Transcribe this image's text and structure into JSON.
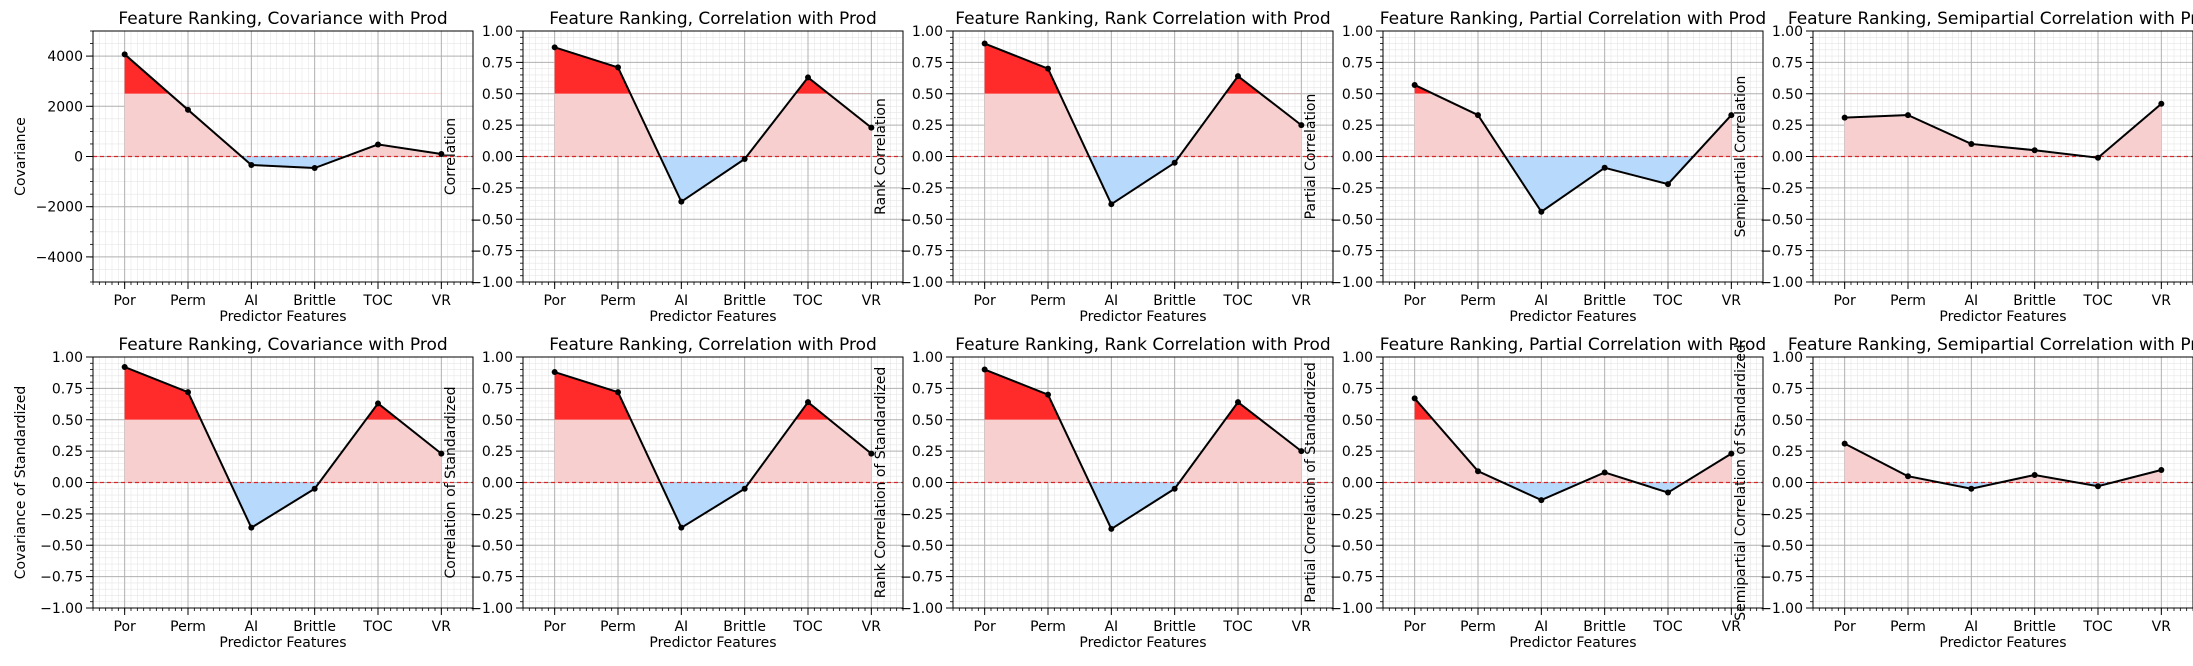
{
  "figure": {
    "xlabel": "Predictor Features",
    "categories": [
      "Por",
      "Perm",
      "AI",
      "Brittle",
      "TOC",
      "VR"
    ],
    "colors": {
      "line": "#000000",
      "high_fill": "#ff2a2a",
      "pos_fill": "#f8cfcf",
      "neg_fill": "#b7d9fb",
      "zero_line": "#d62728",
      "grid_major": "#b0b0b0",
      "grid_minor": "#e6e6e6",
      "neg_stroke": "#6f8fcf"
    }
  },
  "chart_data": [
    {
      "type": "line",
      "title": "Feature Ranking, Covariance with Prod",
      "xlabel": "Predictor Features",
      "ylabel": "Covariance",
      "categories": [
        "Por",
        "Perm",
        "AI",
        "Brittle",
        "TOC",
        "VR"
      ],
      "values": [
        4070,
        1860,
        -340,
        -460,
        480,
        100
      ],
      "ylim": [
        -5000,
        5000
      ],
      "yticks": [
        -4000,
        -2000,
        0,
        2000,
        4000
      ],
      "ytick_labels": [
        "−4000",
        "−2000",
        "0",
        "2000",
        "4000"
      ],
      "minor_step": 500,
      "high_threshold": 2500,
      "grid": true
    },
    {
      "type": "line",
      "title": "Feature Ranking, Correlation with Prod",
      "xlabel": "Predictor Features",
      "ylabel": "Correlation",
      "categories": [
        "Por",
        "Perm",
        "AI",
        "Brittle",
        "TOC",
        "VR"
      ],
      "values": [
        0.87,
        0.71,
        -0.36,
        -0.02,
        0.63,
        0.23
      ],
      "ylim": [
        -1.0,
        1.0
      ],
      "yticks": [
        -1.0,
        -0.75,
        -0.5,
        -0.25,
        0.0,
        0.25,
        0.5,
        0.75,
        1.0
      ],
      "ytick_labels": [
        "−1.00",
        "−0.75",
        "−0.50",
        "−0.25",
        "0.00",
        "0.25",
        "0.50",
        "0.75",
        "1.00"
      ],
      "minor_step": 0.05,
      "high_threshold": 0.5,
      "grid": true
    },
    {
      "type": "line",
      "title": "Feature Ranking, Rank Correlation with Prod",
      "xlabel": "Predictor Features",
      "ylabel": "Rank Correlation",
      "categories": [
        "Por",
        "Perm",
        "AI",
        "Brittle",
        "TOC",
        "VR"
      ],
      "values": [
        0.9,
        0.7,
        -0.38,
        -0.05,
        0.64,
        0.25
      ],
      "ylim": [
        -1.0,
        1.0
      ],
      "yticks": [
        -1.0,
        -0.75,
        -0.5,
        -0.25,
        0.0,
        0.25,
        0.5,
        0.75,
        1.0
      ],
      "ytick_labels": [
        "−1.00",
        "−0.75",
        "−0.50",
        "−0.25",
        "0.00",
        "0.25",
        "0.50",
        "0.75",
        "1.00"
      ],
      "minor_step": 0.05,
      "high_threshold": 0.5,
      "grid": true
    },
    {
      "type": "line",
      "title": "Feature Ranking, Partial Correlation with Prod",
      "xlabel": "Predictor Features",
      "ylabel": "Partial Correlation",
      "categories": [
        "Por",
        "Perm",
        "AI",
        "Brittle",
        "TOC",
        "VR"
      ],
      "values": [
        0.57,
        0.33,
        -0.44,
        -0.09,
        -0.22,
        0.33
      ],
      "ylim": [
        -1.0,
        1.0
      ],
      "yticks": [
        -1.0,
        -0.75,
        -0.5,
        -0.25,
        0.0,
        0.25,
        0.5,
        0.75,
        1.0
      ],
      "ytick_labels": [
        "−1.00",
        "−0.75",
        "−0.50",
        "−0.25",
        "0.00",
        "0.25",
        "0.50",
        "0.75",
        "1.00"
      ],
      "minor_step": 0.05,
      "high_threshold": 0.5,
      "grid": true
    },
    {
      "type": "line",
      "title": "Feature Ranking, Semipartial Correlation with Prod",
      "xlabel": "Predictor Features",
      "ylabel": "Semipartial Correlation",
      "categories": [
        "Por",
        "Perm",
        "AI",
        "Brittle",
        "TOC",
        "VR"
      ],
      "values": [
        0.31,
        0.33,
        0.1,
        0.05,
        -0.01,
        0.42
      ],
      "ylim": [
        -1.0,
        1.0
      ],
      "yticks": [
        -1.0,
        -0.75,
        -0.5,
        -0.25,
        0.0,
        0.25,
        0.5,
        0.75,
        1.0
      ],
      "ytick_labels": [
        "−1.00",
        "−0.75",
        "−0.50",
        "−0.25",
        "0.00",
        "0.25",
        "0.50",
        "0.75",
        "1.00"
      ],
      "minor_step": 0.05,
      "high_threshold": 0.5,
      "grid": true
    },
    {
      "type": "line",
      "title": "Feature Ranking, Covariance with Prod",
      "xlabel": "Predictor Features",
      "ylabel": "Covariance of Standardized",
      "categories": [
        "Por",
        "Perm",
        "AI",
        "Brittle",
        "TOC",
        "VR"
      ],
      "values": [
        0.92,
        0.72,
        -0.36,
        -0.05,
        0.63,
        0.23
      ],
      "ylim": [
        -1.0,
        1.0
      ],
      "yticks": [
        -1.0,
        -0.75,
        -0.5,
        -0.25,
        0.0,
        0.25,
        0.5,
        0.75,
        1.0
      ],
      "ytick_labels": [
        "−1.00",
        "−0.75",
        "−0.50",
        "−0.25",
        "0.00",
        "0.25",
        "0.50",
        "0.75",
        "1.00"
      ],
      "minor_step": 0.05,
      "high_threshold": 0.5,
      "grid": true
    },
    {
      "type": "line",
      "title": "Feature Ranking, Correlation with Prod",
      "xlabel": "Predictor Features",
      "ylabel": "Correlation of Standardized",
      "categories": [
        "Por",
        "Perm",
        "AI",
        "Brittle",
        "TOC",
        "VR"
      ],
      "values": [
        0.88,
        0.72,
        -0.36,
        -0.05,
        0.64,
        0.23
      ],
      "ylim": [
        -1.0,
        1.0
      ],
      "yticks": [
        -1.0,
        -0.75,
        -0.5,
        -0.25,
        0.0,
        0.25,
        0.5,
        0.75,
        1.0
      ],
      "ytick_labels": [
        "−1.00",
        "−0.75",
        "−0.50",
        "−0.25",
        "0.00",
        "0.25",
        "0.50",
        "0.75",
        "1.00"
      ],
      "minor_step": 0.05,
      "high_threshold": 0.5,
      "grid": true
    },
    {
      "type": "line",
      "title": "Feature Ranking, Rank Correlation with Prod",
      "xlabel": "Predictor Features",
      "ylabel": "Rank Correlation of Standardized",
      "categories": [
        "Por",
        "Perm",
        "AI",
        "Brittle",
        "TOC",
        "VR"
      ],
      "values": [
        0.9,
        0.7,
        -0.37,
        -0.05,
        0.64,
        0.25
      ],
      "ylim": [
        -1.0,
        1.0
      ],
      "yticks": [
        -1.0,
        -0.75,
        -0.5,
        -0.25,
        0.0,
        0.25,
        0.5,
        0.75,
        1.0
      ],
      "ytick_labels": [
        "−1.00",
        "−0.75",
        "−0.50",
        "−0.25",
        "0.00",
        "0.25",
        "0.50",
        "0.75",
        "1.00"
      ],
      "minor_step": 0.05,
      "high_threshold": 0.5,
      "grid": true
    },
    {
      "type": "line",
      "title": "Feature Ranking, Partial Correlation with Prod",
      "xlabel": "Predictor Features",
      "ylabel": "Partial Correlation of Standardized",
      "categories": [
        "Por",
        "Perm",
        "AI",
        "Brittle",
        "TOC",
        "VR"
      ],
      "values": [
        0.67,
        0.09,
        -0.14,
        0.08,
        -0.08,
        0.23
      ],
      "ylim": [
        -1.0,
        1.0
      ],
      "yticks": [
        -1.0,
        -0.75,
        -0.5,
        -0.25,
        0.0,
        0.25,
        0.5,
        0.75,
        1.0
      ],
      "ytick_labels": [
        "−1.00",
        "−0.75",
        "−0.50",
        "−0.25",
        "0.00",
        "0.25",
        "0.50",
        "0.75",
        "1.00"
      ],
      "minor_step": 0.05,
      "high_threshold": 0.5,
      "grid": true
    },
    {
      "type": "line",
      "title": "Feature Ranking, Semipartial Correlation with Prod",
      "xlabel": "Predictor Features",
      "ylabel": "Semipartial Correlation of Standardized",
      "categories": [
        "Por",
        "Perm",
        "AI",
        "Brittle",
        "TOC",
        "VR"
      ],
      "values": [
        0.31,
        0.05,
        -0.05,
        0.06,
        -0.03,
        0.1
      ],
      "ylim": [
        -1.0,
        1.0
      ],
      "yticks": [
        -1.0,
        -0.75,
        -0.5,
        -0.25,
        0.0,
        0.25,
        0.5,
        0.75,
        1.0
      ],
      "ytick_labels": [
        "−1.00",
        "−0.75",
        "−0.50",
        "−0.25",
        "0.00",
        "0.25",
        "0.50",
        "0.75",
        "1.00"
      ],
      "minor_step": 0.05,
      "high_threshold": 0.5,
      "grid": true
    }
  ]
}
